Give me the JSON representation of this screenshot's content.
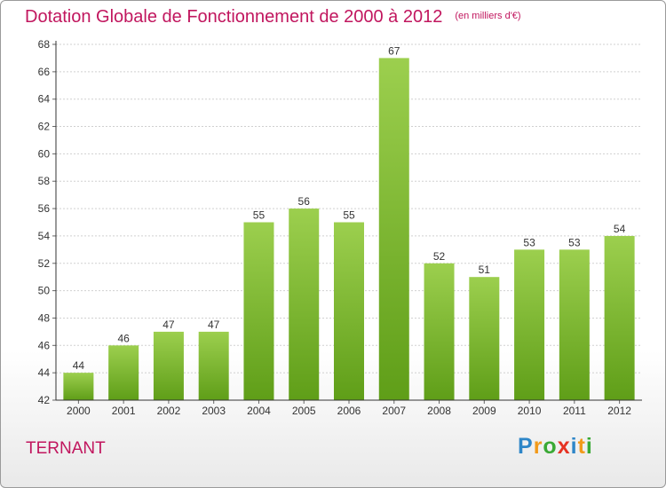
{
  "header": {
    "title": "Dotation Globale de Fonctionnement de 2000 à 2012",
    "unit": "(en milliers d'€)"
  },
  "footer": {
    "commune": "TERNANT",
    "logo": {
      "text": "Proxiti",
      "letters": [
        {
          "char": "P",
          "color": "#2e86c8"
        },
        {
          "char": "r",
          "color": "#f29a1a"
        },
        {
          "char": "o",
          "color": "#3aa935"
        },
        {
          "char": "x",
          "color": "#e63323"
        },
        {
          "char": "i",
          "color": "#2e86c8"
        },
        {
          "char": "t",
          "color": "#f29a1a"
        },
        {
          "char": "i",
          "color": "#3aa935"
        }
      ]
    }
  },
  "chart_data": {
    "type": "bar",
    "title": "Dotation Globale de Fonctionnement de 2000 à 2012",
    "subtitle": "(en milliers d'€)",
    "categories": [
      "2000",
      "2001",
      "2002",
      "2003",
      "2004",
      "2005",
      "2006",
      "2007",
      "2008",
      "2009",
      "2010",
      "2011",
      "2012"
    ],
    "values": [
      44,
      46,
      47,
      47,
      55,
      56,
      55,
      67,
      52,
      51,
      53,
      53,
      54
    ],
    "ylim": [
      42,
      68
    ],
    "yticks": [
      42,
      44,
      46,
      48,
      50,
      52,
      54,
      56,
      58,
      60,
      62,
      64,
      66,
      68
    ],
    "grid": true,
    "colors": {
      "bar_top": "#9ccf4e",
      "bar_bottom": "#5f9e18",
      "grid": "#d0d0d0",
      "axis": "#333333",
      "title": "#c1165e"
    }
  }
}
